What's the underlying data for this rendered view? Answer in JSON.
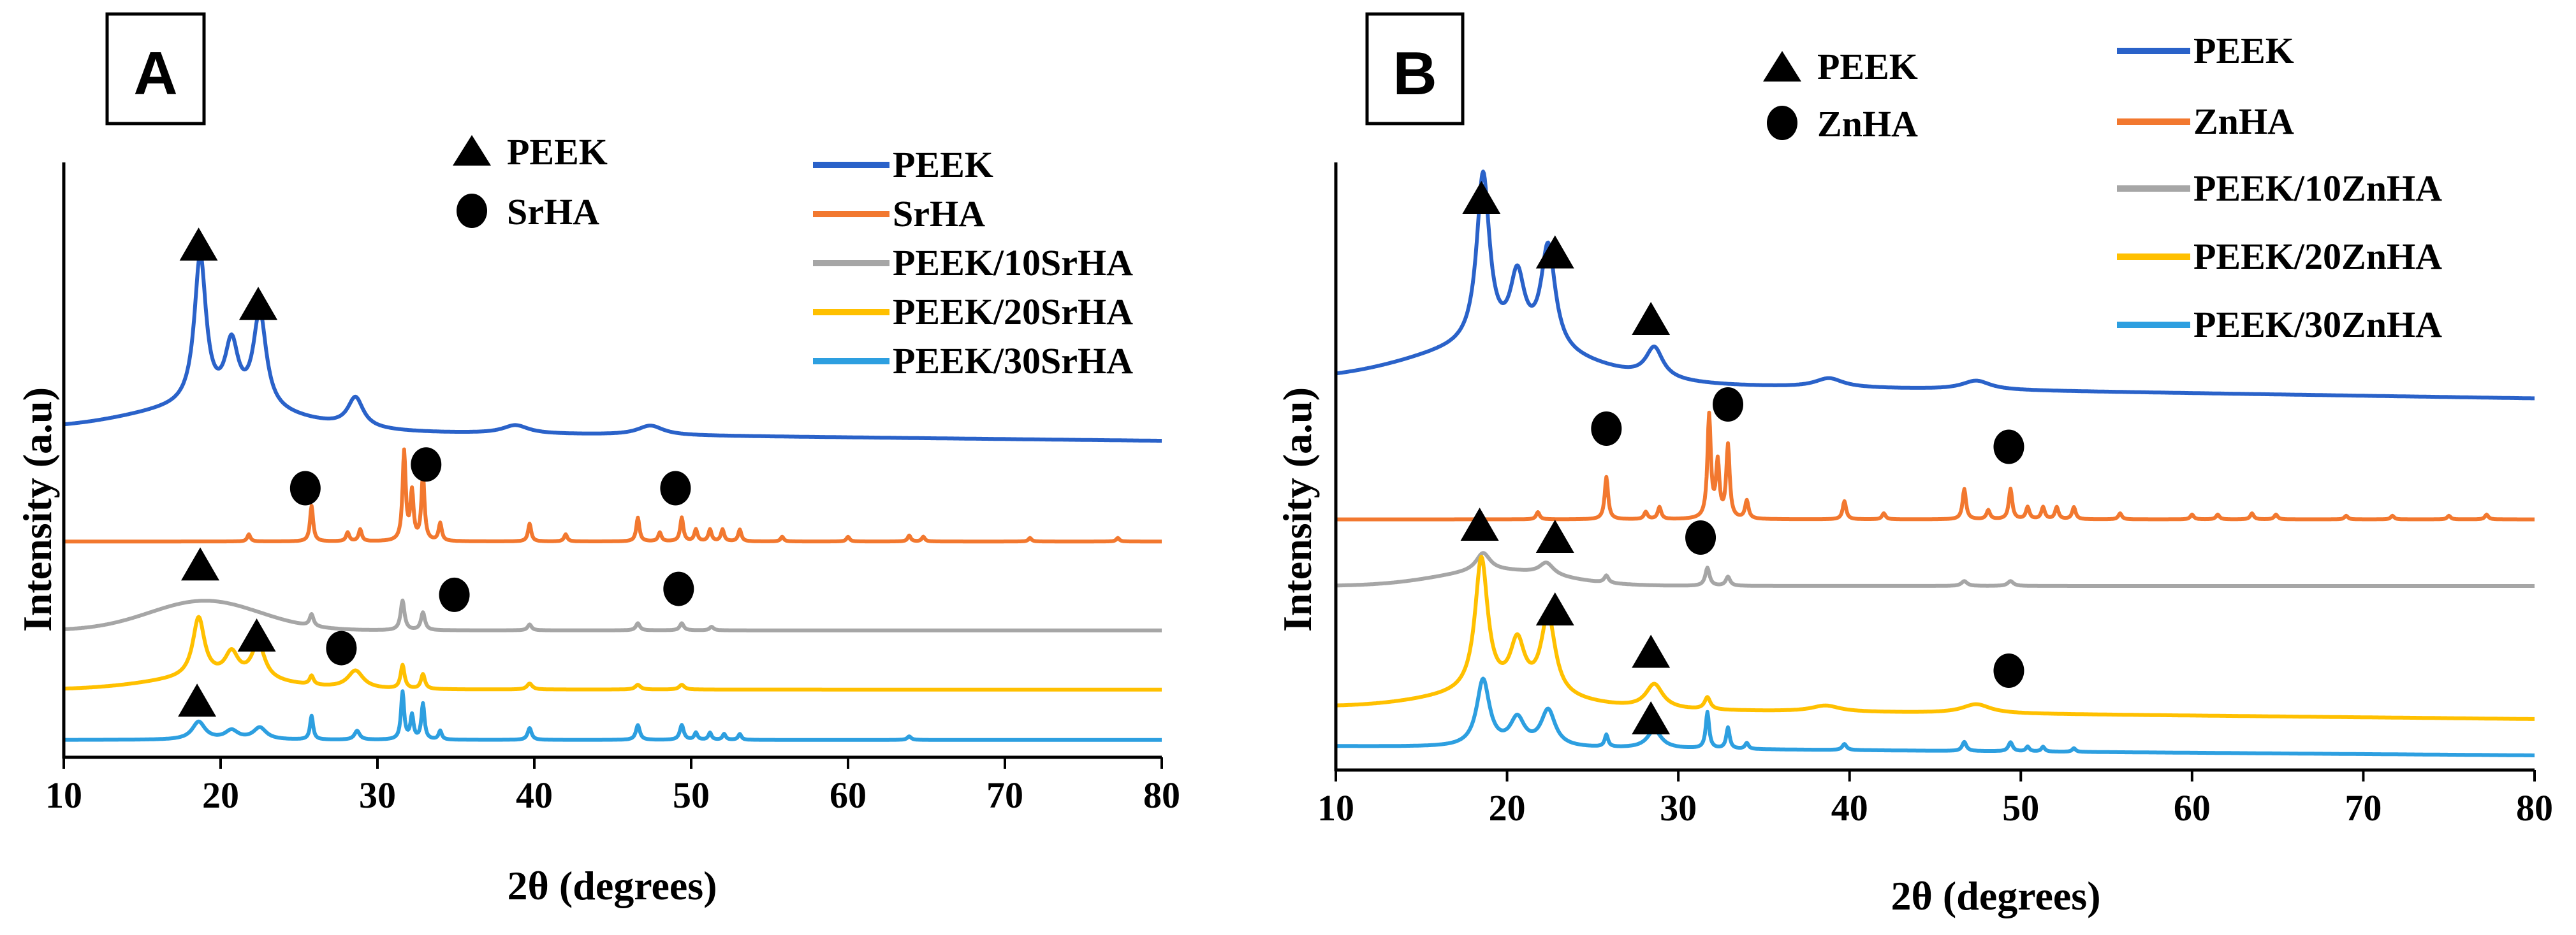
{
  "colors": {
    "PEEK": "#2a62c9",
    "SrHA": "#f2782f",
    "ZnHA": "#f2782f",
    "PEEK/10SrHA": "#a6a6a6",
    "PEEK/20SrHA": "#ffc000",
    "PEEK/30SrHA": "#2d9fe0",
    "PEEK/10ZnHA": "#a6a6a6",
    "PEEK/20ZnHA": "#ffc000",
    "PEEK/30ZnHA": "#2d9fe0"
  },
  "chart_data": [
    {
      "type": "line",
      "panel_label": "A",
      "xlabel": "2θ (degrees)",
      "ylabel": "Intensity (a.u)",
      "xlim": [
        10,
        80
      ],
      "ylim": [
        0,
        100
      ],
      "x_ticks": [
        "10",
        "20",
        "30",
        "40",
        "50",
        "60",
        "70",
        "80"
      ],
      "grid": false,
      "marker_legend": [
        {
          "symbol": "triangle",
          "label": "PEEK"
        },
        {
          "symbol": "circle",
          "label": "SrHA"
        }
      ],
      "legend": [
        "PEEK",
        "SrHA",
        "PEEK/10SrHA",
        "PEEK/20SrHA",
        "PEEK/30SrHA"
      ],
      "series": [
        {
          "name": "PEEK",
          "baseline": 55,
          "end_baseline": 53,
          "halo": {
            "center": 19.5,
            "height": 4,
            "width": 5
          },
          "peaks": [
            [
              18.7,
              25,
              0.45
            ],
            [
              20.7,
              10,
              0.5
            ],
            [
              22.5,
              16,
              0.5
            ],
            [
              28.6,
              5,
              0.6
            ],
            [
              38.8,
              1.4,
              1.0
            ],
            [
              47.4,
              1.6,
              1.0
            ]
          ]
        },
        {
          "name": "SrHA",
          "baseline": 36,
          "end_baseline": 36,
          "peaks": [
            [
              21.8,
              1.2,
              0.12
            ],
            [
              25.8,
              6,
              0.12
            ],
            [
              28.1,
              1.5,
              0.12
            ],
            [
              28.9,
              2,
              0.12
            ],
            [
              31.7,
              15,
              0.12
            ],
            [
              32.2,
              8,
              0.12
            ],
            [
              32.9,
              11,
              0.12
            ],
            [
              34.0,
              3,
              0.12
            ],
            [
              39.7,
              3,
              0.12
            ],
            [
              42.0,
              1.2,
              0.12
            ],
            [
              46.6,
              4,
              0.12
            ],
            [
              48.0,
              1.5,
              0.12
            ],
            [
              49.4,
              4,
              0.12
            ],
            [
              50.3,
              2,
              0.12
            ],
            [
              51.2,
              2,
              0.12
            ],
            [
              52.0,
              2,
              0.12
            ],
            [
              53.1,
              2,
              0.12
            ],
            [
              55.8,
              0.8,
              0.12
            ],
            [
              60.0,
              0.8,
              0.12
            ],
            [
              63.9,
              1,
              0.12
            ],
            [
              64.8,
              0.8,
              0.12
            ],
            [
              71.6,
              0.6,
              0.12
            ],
            [
              77.2,
              0.6,
              0.12
            ]
          ]
        },
        {
          "name": "PEEK/10SrHA",
          "baseline": 21,
          "end_baseline": 21,
          "halo": {
            "center": 19,
            "height": 5,
            "width": 3.5
          },
          "peaks": [
            [
              25.8,
              2,
              0.15
            ],
            [
              31.6,
              5,
              0.15
            ],
            [
              32.9,
              3,
              0.15
            ],
            [
              39.7,
              1,
              0.15
            ],
            [
              46.6,
              1.2,
              0.15
            ],
            [
              49.4,
              1.2,
              0.15
            ],
            [
              51.3,
              0.6,
              0.15
            ]
          ]
        },
        {
          "name": "PEEK/20SrHA",
          "baseline": 11,
          "end_baseline": 11,
          "halo": {
            "center": 19.5,
            "height": 2,
            "width": 4
          },
          "peaks": [
            [
              18.6,
              10,
              0.45
            ],
            [
              20.7,
              4,
              0.5
            ],
            [
              22.4,
              6,
              0.5
            ],
            [
              25.8,
              1.5,
              0.15
            ],
            [
              28.6,
              3,
              0.6
            ],
            [
              31.6,
              4,
              0.15
            ],
            [
              32.9,
              2.5,
              0.15
            ],
            [
              39.7,
              1,
              0.2
            ],
            [
              46.6,
              0.8,
              0.2
            ],
            [
              49.4,
              0.8,
              0.2
            ]
          ]
        },
        {
          "name": "PEEK/30SrHA",
          "baseline": 2.5,
          "end_baseline": 2.5,
          "peaks": [
            [
              18.6,
              3,
              0.5
            ],
            [
              20.7,
              1.5,
              0.5
            ],
            [
              22.5,
              2,
              0.5
            ],
            [
              25.8,
              4,
              0.12
            ],
            [
              28.7,
              1.5,
              0.2
            ],
            [
              31.6,
              8,
              0.12
            ],
            [
              32.2,
              4,
              0.12
            ],
            [
              32.9,
              6,
              0.12
            ],
            [
              34.0,
              1.5,
              0.12
            ],
            [
              39.7,
              2,
              0.15
            ],
            [
              46.6,
              2.5,
              0.15
            ],
            [
              49.4,
              2.5,
              0.15
            ],
            [
              50.3,
              1.2,
              0.12
            ],
            [
              51.2,
              1.2,
              0.12
            ],
            [
              52.1,
              1,
              0.12
            ],
            [
              53.1,
              1,
              0.12
            ],
            [
              63.9,
              0.6,
              0.15
            ]
          ]
        }
      ],
      "annotations": [
        {
          "symbol": "triangle",
          "x": 18.6,
          "y": 86
        },
        {
          "symbol": "triangle",
          "x": 22.4,
          "y": 76
        },
        {
          "symbol": "circle",
          "x": 25.4,
          "y": 45
        },
        {
          "symbol": "circle",
          "x": 33.1,
          "y": 49
        },
        {
          "symbol": "circle",
          "x": 49.0,
          "y": 45
        },
        {
          "symbol": "triangle",
          "x": 18.7,
          "y": 32
        },
        {
          "symbol": "circle",
          "x": 34.9,
          "y": 27
        },
        {
          "symbol": "circle",
          "x": 49.2,
          "y": 28
        },
        {
          "symbol": "triangle",
          "x": 22.3,
          "y": 20
        },
        {
          "symbol": "circle",
          "x": 27.7,
          "y": 18
        },
        {
          "symbol": "triangle",
          "x": 18.5,
          "y": 9
        }
      ]
    },
    {
      "type": "line",
      "panel_label": "B",
      "xlabel": "2θ (degrees)",
      "ylabel": "Intensity (a.u)",
      "xlim": [
        10,
        80
      ],
      "ylim": [
        0,
        100
      ],
      "x_ticks": [
        "10",
        "20",
        "30",
        "40",
        "50",
        "60",
        "70",
        "80"
      ],
      "grid": false,
      "marker_legend": [
        {
          "symbol": "triangle",
          "label": "PEEK"
        },
        {
          "symbol": "circle",
          "label": "ZnHA"
        }
      ],
      "legend": [
        "PEEK",
        "ZnHA",
        "PEEK/10ZnHA",
        "PEEK/20ZnHA",
        "PEEK/30ZnHA"
      ],
      "series": [
        {
          "name": "PEEK",
          "baseline": 64,
          "end_baseline": 61,
          "halo": {
            "center": 19.5,
            "height": 6,
            "width": 5
          },
          "peaks": [
            [
              18.6,
              28,
              0.45
            ],
            [
              20.6,
              11,
              0.5
            ],
            [
              22.4,
              17,
              0.5
            ],
            [
              28.6,
              5,
              0.6
            ],
            [
              38.8,
              1.5,
              1.0
            ],
            [
              47.4,
              1.5,
              1.0
            ]
          ]
        },
        {
          "name": "ZnHA",
          "baseline": 41,
          "end_baseline": 41,
          "peaks": [
            [
              21.8,
              1.2,
              0.12
            ],
            [
              25.8,
              7,
              0.12
            ],
            [
              28.1,
              1.2,
              0.12
            ],
            [
              28.9,
              2,
              0.12
            ],
            [
              31.8,
              17,
              0.12
            ],
            [
              32.3,
              9,
              0.12
            ],
            [
              32.9,
              12,
              0.12
            ],
            [
              34.0,
              3,
              0.12
            ],
            [
              39.7,
              3,
              0.12
            ],
            [
              42.0,
              1,
              0.12
            ],
            [
              46.7,
              5,
              0.12
            ],
            [
              48.1,
              1.5,
              0.12
            ],
            [
              49.4,
              5,
              0.12
            ],
            [
              50.4,
              2,
              0.12
            ],
            [
              51.3,
              2,
              0.12
            ],
            [
              52.1,
              2,
              0.12
            ],
            [
              53.1,
              2,
              0.12
            ],
            [
              55.8,
              1,
              0.12
            ],
            [
              60.0,
              0.8,
              0.12
            ],
            [
              61.5,
              0.8,
              0.12
            ],
            [
              63.5,
              1,
              0.12
            ],
            [
              64.9,
              0.8,
              0.12
            ],
            [
              69.0,
              0.6,
              0.12
            ],
            [
              71.7,
              0.6,
              0.12
            ],
            [
              75.0,
              0.6,
              0.12
            ],
            [
              77.2,
              0.8,
              0.12
            ]
          ]
        },
        {
          "name": "PEEK/10ZnHA",
          "baseline": 30,
          "end_baseline": 30,
          "halo": {
            "center": 19.5,
            "height": 2.5,
            "width": 3.5
          },
          "peaks": [
            [
              18.6,
              3,
              0.5
            ],
            [
              22.3,
              2,
              0.5
            ],
            [
              25.8,
              1.2,
              0.15
            ],
            [
              31.7,
              3,
              0.15
            ],
            [
              32.9,
              1.5,
              0.15
            ],
            [
              46.7,
              0.8,
              0.2
            ],
            [
              49.4,
              0.8,
              0.2
            ]
          ]
        },
        {
          "name": "PEEK/20ZnHA",
          "baseline": 10,
          "end_baseline": 8,
          "halo": {
            "center": 19.5,
            "height": 2.5,
            "width": 4
          },
          "peaks": [
            [
              18.5,
              22,
              0.45
            ],
            [
              20.6,
              8,
              0.5
            ],
            [
              22.4,
              13,
              0.5
            ],
            [
              28.6,
              4,
              0.6
            ],
            [
              31.7,
              2,
              0.2
            ],
            [
              38.6,
              1,
              1.0
            ],
            [
              47.4,
              1.5,
              1.0
            ]
          ]
        },
        {
          "name": "PEEK/30ZnHA",
          "baseline": 3.5,
          "end_baseline": 2,
          "peaks": [
            [
              18.6,
              11,
              0.45
            ],
            [
              20.6,
              4.5,
              0.5
            ],
            [
              22.4,
              6,
              0.5
            ],
            [
              25.8,
              2,
              0.12
            ],
            [
              28.6,
              3,
              0.5
            ],
            [
              31.7,
              6,
              0.12
            ],
            [
              32.9,
              3.5,
              0.12
            ],
            [
              34.0,
              1,
              0.12
            ],
            [
              39.7,
              1,
              0.15
            ],
            [
              46.7,
              1.5,
              0.15
            ],
            [
              49.4,
              1.5,
              0.15
            ],
            [
              50.4,
              0.8,
              0.12
            ],
            [
              51.3,
              0.8,
              0.12
            ],
            [
              53.1,
              0.6,
              0.12
            ]
          ]
        }
      ],
      "annotations": [
        {
          "symbol": "triangle",
          "x": 18.5,
          "y": 94
        },
        {
          "symbol": "triangle",
          "x": 22.8,
          "y": 85
        },
        {
          "symbol": "triangle",
          "x": 28.4,
          "y": 74
        },
        {
          "symbol": "circle",
          "x": 25.8,
          "y": 56
        },
        {
          "symbol": "circle",
          "x": 32.9,
          "y": 60
        },
        {
          "symbol": "circle",
          "x": 49.3,
          "y": 53
        },
        {
          "symbol": "triangle",
          "x": 18.4,
          "y": 40
        },
        {
          "symbol": "triangle",
          "x": 22.8,
          "y": 38
        },
        {
          "symbol": "circle",
          "x": 31.3,
          "y": 38
        },
        {
          "symbol": "triangle",
          "x": 22.8,
          "y": 26
        },
        {
          "symbol": "triangle",
          "x": 28.4,
          "y": 19
        },
        {
          "symbol": "circle",
          "x": 49.3,
          "y": 16
        },
        {
          "symbol": "triangle",
          "x": 28.4,
          "y": 8
        }
      ]
    }
  ]
}
